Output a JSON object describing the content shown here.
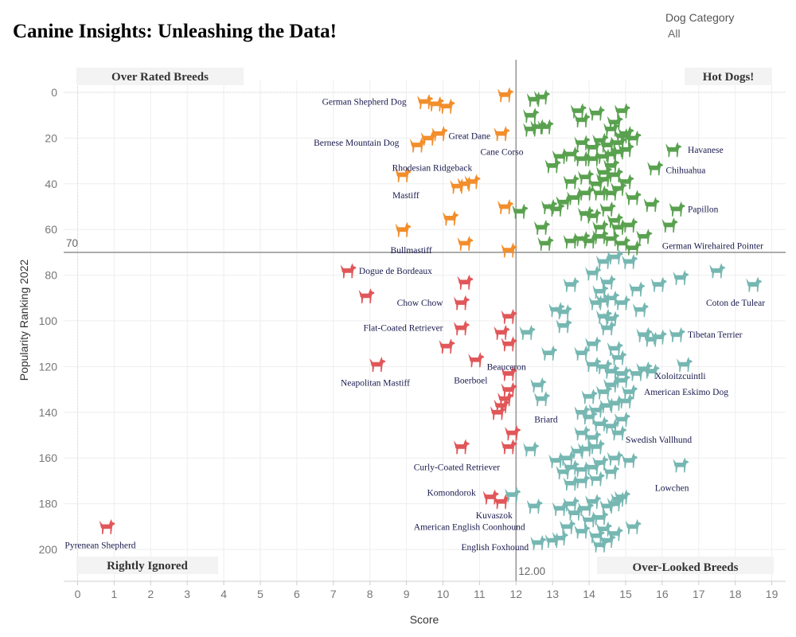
{
  "title": "Canine Insights: Unleashing the Data!",
  "filter": {
    "label": "Dog Category",
    "value": "All"
  },
  "colors": {
    "over_rated": "#f28e2b",
    "hot_dogs": "#59a14f",
    "rightly_ignored": "#e15759",
    "over_looked": "#76b7b2",
    "label": "#1a1a4e",
    "refline": "#999999"
  },
  "chart_data": {
    "type": "scatter",
    "marker": "dog-icon",
    "xlabel": "Score",
    "ylabel": "Popularity Ranking 2022",
    "xlim": [
      -0.4,
      19.4
    ],
    "ylim": [
      -5,
      211
    ],
    "y_reversed": true,
    "x_ticks": [
      0,
      1,
      2,
      3,
      4,
      5,
      6,
      7,
      8,
      9,
      10,
      11,
      12,
      13,
      14,
      15,
      16,
      17,
      18,
      19
    ],
    "y_ticks": [
      0,
      20,
      40,
      60,
      80,
      100,
      120,
      140,
      160,
      180,
      200
    ],
    "grid": true,
    "ref_x": {
      "value": 12,
      "label": "12.00"
    },
    "ref_y": {
      "value": 70,
      "label": "70"
    },
    "quadrants": {
      "top_left": "Over Rated Breeds",
      "top_right": "Hot Dogs!",
      "bottom_left": "Rightly Ignored",
      "bottom_right": "Over-Looked Breeds"
    },
    "series": [
      {
        "name": "Over Rated Breeds",
        "color_key": "over_rated",
        "points": [
          [
            9.5,
            5
          ],
          [
            9.8,
            6
          ],
          [
            10.1,
            7
          ],
          [
            11.7,
            2
          ],
          [
            9.3,
            24
          ],
          [
            9.6,
            21
          ],
          [
            9.9,
            19
          ],
          [
            11.6,
            19
          ],
          [
            8.9,
            37
          ],
          [
            10.4,
            42
          ],
          [
            10.6,
            41
          ],
          [
            10.8,
            40
          ],
          [
            11.7,
            51
          ],
          [
            10.2,
            56
          ],
          [
            8.9,
            61
          ],
          [
            10.6,
            67
          ],
          [
            11.8,
            70
          ]
        ]
      },
      {
        "name": "Hot Dogs!",
        "color_key": "hot_dogs",
        "points": [
          [
            12.5,
            4
          ],
          [
            12.7,
            3
          ],
          [
            12.4,
            11
          ],
          [
            13.7,
            9
          ],
          [
            14.2,
            10
          ],
          [
            14.9,
            9
          ],
          [
            12.4,
            17
          ],
          [
            12.6,
            16
          ],
          [
            12.8,
            16
          ],
          [
            13.8,
            13
          ],
          [
            14.7,
            14
          ],
          [
            14.6,
            17
          ],
          [
            14.9,
            20
          ],
          [
            15,
            19
          ],
          [
            13.8,
            23
          ],
          [
            14.1,
            25
          ],
          [
            14.3,
            22
          ],
          [
            14.5,
            24
          ],
          [
            14.8,
            23
          ],
          [
            15.2,
            21
          ],
          [
            13.2,
            29
          ],
          [
            13.5,
            28
          ],
          [
            13.8,
            30
          ],
          [
            14.1,
            30
          ],
          [
            14.4,
            29
          ],
          [
            14.6,
            28
          ],
          [
            14.8,
            27
          ],
          [
            15,
            26
          ],
          [
            13,
            33
          ],
          [
            14.4,
            36
          ],
          [
            14.6,
            33
          ],
          [
            15.8,
            34
          ],
          [
            16.3,
            26
          ],
          [
            13.5,
            40
          ],
          [
            13.9,
            38
          ],
          [
            14.2,
            41
          ],
          [
            14.4,
            39
          ],
          [
            14.7,
            37
          ],
          [
            15,
            40
          ],
          [
            13.6,
            47
          ],
          [
            13.9,
            45
          ],
          [
            14.3,
            45
          ],
          [
            14.6,
            45
          ],
          [
            14.8,
            43
          ],
          [
            15.2,
            47
          ],
          [
            15.7,
            50
          ],
          [
            16.4,
            52
          ],
          [
            12.1,
            53
          ],
          [
            12.9,
            51
          ],
          [
            13.1,
            52
          ],
          [
            13.3,
            49
          ],
          [
            13.9,
            54
          ],
          [
            14.1,
            55
          ],
          [
            14.5,
            52
          ],
          [
            14.7,
            57
          ],
          [
            12.7,
            60
          ],
          [
            14.3,
            60
          ],
          [
            14.8,
            60
          ],
          [
            15.1,
            59
          ],
          [
            16.2,
            59
          ],
          [
            12.8,
            67
          ],
          [
            13.5,
            66
          ],
          [
            13.8,
            65
          ],
          [
            14,
            66
          ],
          [
            14.3,
            64
          ],
          [
            14.6,
            65
          ],
          [
            14.9,
            67
          ],
          [
            15.2,
            69
          ],
          [
            15.5,
            64
          ]
        ]
      },
      {
        "name": "Rightly Ignored",
        "color_key": "rightly_ignored",
        "points": [
          [
            7.4,
            79
          ],
          [
            7.9,
            90
          ],
          [
            10.6,
            84
          ],
          [
            10.5,
            93
          ],
          [
            10.5,
            104
          ],
          [
            11.8,
            99
          ],
          [
            11.6,
            106
          ],
          [
            11.8,
            111
          ],
          [
            10.1,
            112
          ],
          [
            10.9,
            118
          ],
          [
            8.2,
            120
          ],
          [
            11.8,
            124
          ],
          [
            11.8,
            131
          ],
          [
            11.7,
            135
          ],
          [
            11.6,
            138
          ],
          [
            11.5,
            141
          ],
          [
            11.9,
            150
          ],
          [
            11.8,
            156
          ],
          [
            10.5,
            156
          ],
          [
            11.3,
            178
          ],
          [
            11.6,
            180
          ],
          [
            0.8,
            191
          ]
        ]
      },
      {
        "name": "Over-Looked Breeds",
        "color_key": "over_looked",
        "points": [
          [
            14.7,
            73
          ],
          [
            14.4,
            75
          ],
          [
            14.1,
            80
          ],
          [
            15.1,
            75
          ],
          [
            13.5,
            85
          ],
          [
            14.5,
            84
          ],
          [
            14.3,
            88
          ],
          [
            15.3,
            87
          ],
          [
            15.9,
            85
          ],
          [
            16.5,
            82
          ],
          [
            17.5,
            79
          ],
          [
            18.5,
            85
          ],
          [
            13.1,
            96
          ],
          [
            13.3,
            97
          ],
          [
            14.2,
            93
          ],
          [
            14.4,
            92
          ],
          [
            14.6,
            91
          ],
          [
            14.9,
            93
          ],
          [
            15.4,
            96
          ],
          [
            14.4,
            99
          ],
          [
            14.6,
            100
          ],
          [
            13.3,
            103
          ],
          [
            14.5,
            104
          ],
          [
            14.1,
            111
          ],
          [
            12.3,
            106
          ],
          [
            12.9,
            115
          ],
          [
            13.8,
            115
          ],
          [
            14.7,
            113
          ],
          [
            14.8,
            117
          ],
          [
            15.5,
            107
          ],
          [
            15.7,
            109
          ],
          [
            15.9,
            108
          ],
          [
            16.4,
            107
          ],
          [
            16.6,
            120
          ],
          [
            14.1,
            120
          ],
          [
            14.4,
            121
          ],
          [
            14.6,
            123
          ],
          [
            14.9,
            124
          ],
          [
            15.3,
            124
          ],
          [
            15.5,
            122
          ],
          [
            15.7,
            123
          ],
          [
            12.6,
            129
          ],
          [
            12.7,
            135
          ],
          [
            14,
            134
          ],
          [
            14.4,
            132
          ],
          [
            14.6,
            129
          ],
          [
            14.9,
            127
          ],
          [
            15.1,
            132
          ],
          [
            13.8,
            141
          ],
          [
            14,
            143
          ],
          [
            14.2,
            140
          ],
          [
            14.5,
            138
          ],
          [
            14.7,
            137
          ],
          [
            15,
            136
          ],
          [
            14.3,
            146
          ],
          [
            14.6,
            147
          ],
          [
            14.9,
            144
          ],
          [
            13.8,
            150
          ],
          [
            14.1,
            152
          ],
          [
            14.8,
            150
          ],
          [
            12.4,
            157
          ],
          [
            13.1,
            162
          ],
          [
            13.4,
            161
          ],
          [
            13.7,
            158
          ],
          [
            13.9,
            157
          ],
          [
            14.2,
            156
          ],
          [
            13.3,
            167
          ],
          [
            13.5,
            165
          ],
          [
            13.8,
            166
          ],
          [
            14.1,
            165
          ],
          [
            14.3,
            163
          ],
          [
            14.7,
            161
          ],
          [
            15.1,
            162
          ],
          [
            13.5,
            172
          ],
          [
            13.8,
            171
          ],
          [
            14.2,
            170
          ],
          [
            14.6,
            167
          ],
          [
            16.5,
            164
          ],
          [
            11.9,
            177
          ],
          [
            12.5,
            182
          ],
          [
            13.2,
            183
          ],
          [
            13.5,
            181
          ],
          [
            13.9,
            183
          ],
          [
            14.1,
            180
          ],
          [
            14.5,
            182
          ],
          [
            14.7,
            181
          ],
          [
            14.8,
            179
          ],
          [
            14.9,
            178
          ],
          [
            13.6,
            185
          ],
          [
            14,
            188
          ],
          [
            14.3,
            187
          ],
          [
            13.4,
            191
          ],
          [
            13.8,
            193
          ],
          [
            14.2,
            195
          ],
          [
            14.4,
            192
          ],
          [
            14.7,
            194
          ],
          [
            15.2,
            191
          ],
          [
            12.6,
            198
          ],
          [
            13,
            197
          ],
          [
            13.2,
            196
          ],
          [
            14.3,
            199
          ],
          [
            14.5,
            197
          ]
        ]
      }
    ],
    "labels": [
      {
        "text": "German Shepherd Dog",
        "x": 9.0,
        "y": 4,
        "anchor": "end"
      },
      {
        "text": "Bernese Mountain Dog",
        "x": 8.8,
        "y": 22,
        "anchor": "end"
      },
      {
        "text": "Great Dane",
        "x": 11.3,
        "y": 19,
        "anchor": "end"
      },
      {
        "text": "Cane Corso",
        "x": 12.2,
        "y": 26,
        "anchor": "end"
      },
      {
        "text": "Rhodesian Ridgeback",
        "x": 10.8,
        "y": 33,
        "anchor": "end"
      },
      {
        "text": "Mastiff",
        "x": 9.35,
        "y": 45,
        "anchor": "end"
      },
      {
        "text": "Bullmastiff",
        "x": 9.7,
        "y": 69,
        "anchor": "end"
      },
      {
        "text": "Havanese",
        "x": 16.7,
        "y": 25,
        "anchor": "start"
      },
      {
        "text": "Chihuahua",
        "x": 16.1,
        "y": 34,
        "anchor": "start"
      },
      {
        "text": "Papillon",
        "x": 16.7,
        "y": 51,
        "anchor": "start"
      },
      {
        "text": "German Wirehaired Pointer",
        "x": 16.0,
        "y": 67,
        "anchor": "start"
      },
      {
        "text": "Dogue de Bordeaux",
        "x": 7.7,
        "y": 78,
        "anchor": "start"
      },
      {
        "text": "Chow Chow",
        "x": 10.0,
        "y": 92,
        "anchor": "end"
      },
      {
        "text": "Flat-Coated Retriever",
        "x": 10.0,
        "y": 103,
        "anchor": "end"
      },
      {
        "text": "Beauceron",
        "x": 11.2,
        "y": 120,
        "anchor": "start"
      },
      {
        "text": "Neapolitan Mastiff",
        "x": 7.2,
        "y": 127,
        "anchor": "start"
      },
      {
        "text": "Boerboel",
        "x": 10.3,
        "y": 126,
        "anchor": "start"
      },
      {
        "text": "Curly-Coated Retriever",
        "x": 9.2,
        "y": 164,
        "anchor": "start"
      },
      {
        "text": "Komondorok",
        "x": 10.9,
        "y": 175,
        "anchor": "end"
      },
      {
        "text": "Kuvaszok",
        "x": 10.9,
        "y": 185,
        "anchor": "start"
      },
      {
        "text": "American English Coonhound",
        "x": 9.2,
        "y": 190,
        "anchor": "start"
      },
      {
        "text": "English Foxhound",
        "x": 10.5,
        "y": 199,
        "anchor": "start"
      },
      {
        "text": "Pyrenean Shepherd",
        "x": -0.35,
        "y": 198,
        "anchor": "start"
      },
      {
        "text": "Coton de Tulear",
        "x": 17.2,
        "y": 92,
        "anchor": "start"
      },
      {
        "text": "Tibetan Terrier",
        "x": 16.7,
        "y": 106,
        "anchor": "start"
      },
      {
        "text": "Xoloitzcuintli",
        "x": 15.8,
        "y": 124,
        "anchor": "start"
      },
      {
        "text": "American Eskimo Dog",
        "x": 15.5,
        "y": 131,
        "anchor": "start"
      },
      {
        "text": "Briard",
        "x": 12.5,
        "y": 143,
        "anchor": "start"
      },
      {
        "text": "Swedish Vallhund",
        "x": 15.0,
        "y": 152,
        "anchor": "start"
      },
      {
        "text": "Lowchen",
        "x": 15.8,
        "y": 173,
        "anchor": "start"
      }
    ]
  }
}
